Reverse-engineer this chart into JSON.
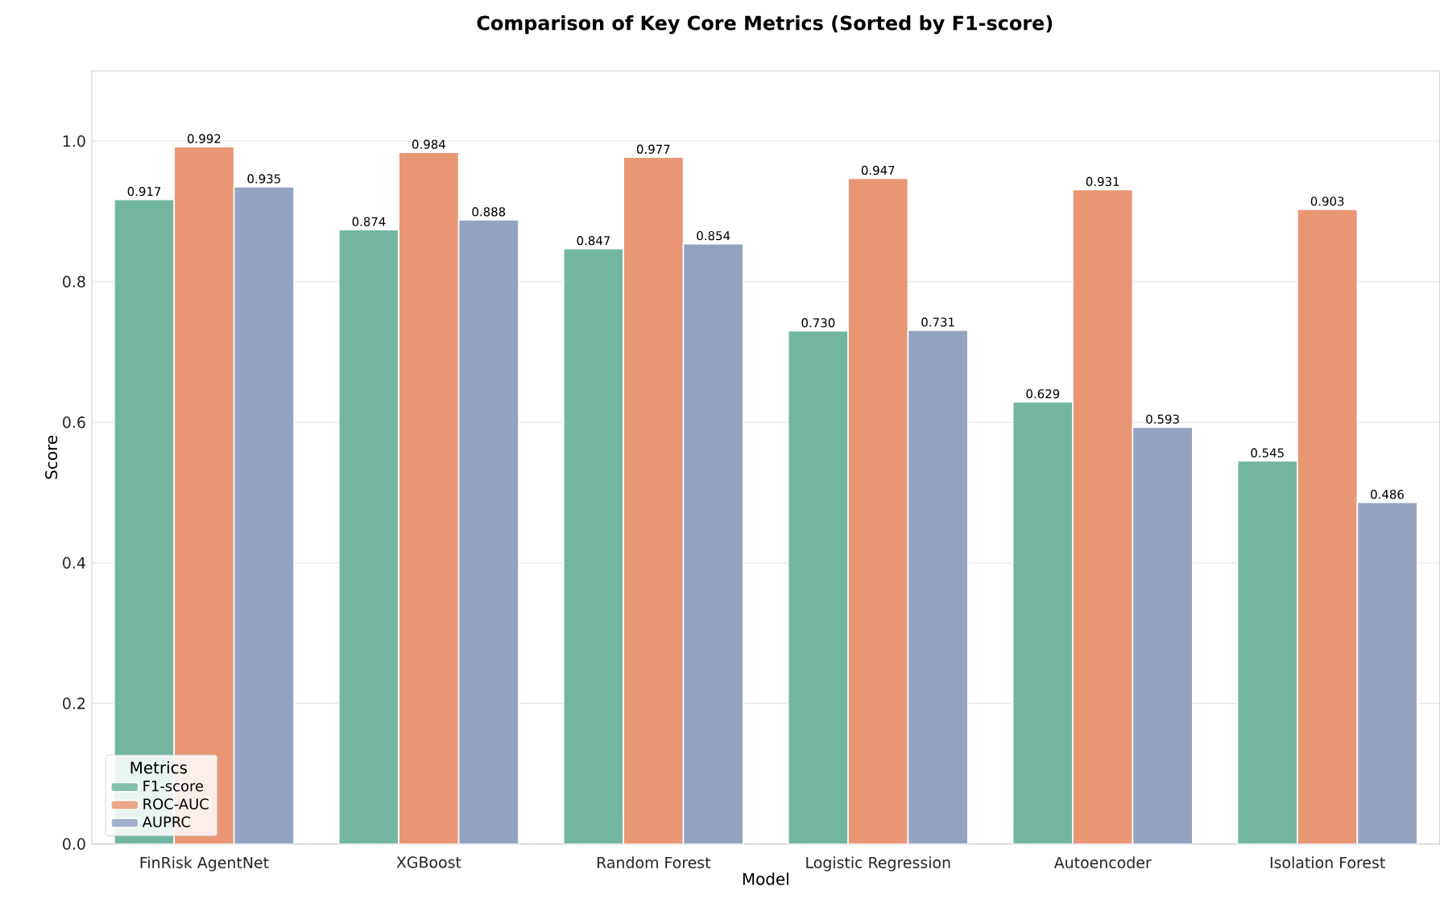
{
  "chart_data": {
    "type": "bar",
    "title": "Comparison of Key Core Metrics (Sorted by F1-score)",
    "xlabel": "Model",
    "ylabel": "Score",
    "legend_title": "Metrics",
    "categories": [
      "FinRisk AgentNet",
      "XGBoost",
      "Random Forest",
      "Logistic Regression",
      "Autoencoder",
      "Isolation Forest"
    ],
    "series": [
      {
        "name": "F1-score",
        "color": "#72b6a1",
        "values": [
          0.917,
          0.874,
          0.847,
          0.73,
          0.629,
          0.545
        ],
        "value_labels": [
          "0.917",
          "0.874",
          "0.847",
          "0.730",
          "0.629",
          "0.545"
        ]
      },
      {
        "name": "ROC-AUC",
        "color": "#e99675",
        "values": [
          0.992,
          0.984,
          0.977,
          0.947,
          0.931,
          0.903
        ],
        "value_labels": [
          "0.992",
          "0.984",
          "0.977",
          "0.947",
          "0.931",
          "0.903"
        ]
      },
      {
        "name": "AUPRC",
        "color": "#95a3c3",
        "values": [
          0.935,
          0.888,
          0.854,
          0.731,
          0.593,
          0.486
        ],
        "value_labels": [
          "0.935",
          "0.888",
          "0.854",
          "0.731",
          "0.593",
          "0.486"
        ]
      }
    ],
    "ylim": [
      0,
      1.1
    ],
    "yticks": [
      {
        "value": 0,
        "label": "0.0"
      },
      {
        "value": 0.2,
        "label": "0.2"
      },
      {
        "value": 0.4,
        "label": "0.4"
      },
      {
        "value": 0.6,
        "label": "0.6"
      },
      {
        "value": 0.8,
        "label": "0.8"
      },
      {
        "value": 1.0,
        "label": "1.0"
      }
    ],
    "grid": "y",
    "legend": "bottom left"
  }
}
